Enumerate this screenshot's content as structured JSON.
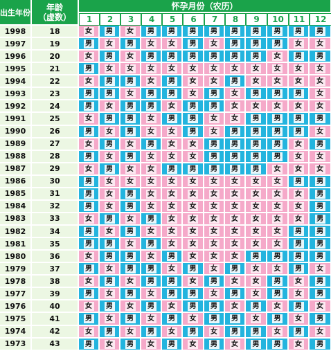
{
  "header": {
    "birth_year_label": "出生年份",
    "age_label": "年龄",
    "age_sub_label": "（虚数）",
    "months_label": "怀孕月份（农历）",
    "months": [
      "1",
      "2",
      "3",
      "4",
      "5",
      "6",
      "7",
      "8",
      "9",
      "10",
      "11",
      "12"
    ]
  },
  "colors": {
    "header_green": "#1aa34a",
    "boy_blue": "#23b4de",
    "girl_pink": "#f5a9c9",
    "label_bg": "#ecf7e3"
  },
  "rows": [
    {
      "year": "1998",
      "age": "18",
      "cells": [
        "女",
        "男",
        "女",
        "男",
        "男",
        "男",
        "男",
        "男",
        "男",
        "男",
        "男",
        "男"
      ]
    },
    {
      "year": "1997",
      "age": "19",
      "cells": [
        "男",
        "女",
        "男",
        "女",
        "女",
        "男",
        "女",
        "男",
        "男",
        "男",
        "女",
        "女"
      ]
    },
    {
      "year": "1996",
      "age": "20",
      "cells": [
        "女",
        "男",
        "女",
        "男",
        "男",
        "男",
        "男",
        "男",
        "男",
        "女",
        "男",
        "男"
      ]
    },
    {
      "year": "1995",
      "age": "21",
      "cells": [
        "男",
        "女",
        "女",
        "女",
        "女",
        "女",
        "女",
        "女",
        "女",
        "女",
        "女",
        "女"
      ]
    },
    {
      "year": "1994",
      "age": "22",
      "cells": [
        "女",
        "男",
        "男",
        "女",
        "男",
        "女",
        "女",
        "男",
        "女",
        "女",
        "女",
        "女"
      ]
    },
    {
      "year": "1993",
      "age": "23",
      "cells": [
        "男",
        "男",
        "女",
        "男",
        "男",
        "女",
        "男",
        "女",
        "男",
        "男",
        "男",
        "女"
      ]
    },
    {
      "year": "1992",
      "age": "24",
      "cells": [
        "男",
        "女",
        "男",
        "男",
        "女",
        "男",
        "男",
        "女",
        "女",
        "女",
        "女",
        "女"
      ]
    },
    {
      "year": "1991",
      "age": "25",
      "cells": [
        "女",
        "男",
        "男",
        "女",
        "男",
        "男",
        "女",
        "女",
        "男",
        "男",
        "男",
        "男"
      ]
    },
    {
      "year": "1990",
      "age": "26",
      "cells": [
        "男",
        "女",
        "男",
        "女",
        "女",
        "男",
        "女",
        "男",
        "男",
        "男",
        "男",
        "女"
      ]
    },
    {
      "year": "1989",
      "age": "27",
      "cells": [
        "女",
        "男",
        "女",
        "男",
        "女",
        "女",
        "男",
        "男",
        "男",
        "男",
        "女",
        "男"
      ]
    },
    {
      "year": "1988",
      "age": "28",
      "cells": [
        "男",
        "女",
        "男",
        "女",
        "女",
        "女",
        "男",
        "男",
        "男",
        "男",
        "女",
        "女"
      ]
    },
    {
      "year": "1987",
      "age": "29",
      "cells": [
        "女",
        "男",
        "女",
        "女",
        "男",
        "男",
        "男",
        "男",
        "男",
        "女",
        "女",
        "女"
      ]
    },
    {
      "year": "1986",
      "age": "30",
      "cells": [
        "男",
        "女",
        "女",
        "女",
        "女",
        "女",
        "女",
        "女",
        "女",
        "女",
        "男",
        "男"
      ]
    },
    {
      "year": "1985",
      "age": "31",
      "cells": [
        "男",
        "女",
        "男",
        "女",
        "女",
        "女",
        "女",
        "女",
        "女",
        "女",
        "女",
        "男"
      ]
    },
    {
      "year": "1984",
      "age": "32",
      "cells": [
        "男",
        "女",
        "男",
        "女",
        "女",
        "女",
        "女",
        "女",
        "女",
        "女",
        "女",
        "男"
      ]
    },
    {
      "year": "1983",
      "age": "33",
      "cells": [
        "女",
        "男",
        "女",
        "男",
        "女",
        "女",
        "女",
        "女",
        "女",
        "女",
        "女",
        "男"
      ]
    },
    {
      "year": "1982",
      "age": "34",
      "cells": [
        "男",
        "女",
        "男",
        "女",
        "女",
        "女",
        "女",
        "女",
        "女",
        "女",
        "男",
        "男"
      ]
    },
    {
      "year": "1981",
      "age": "35",
      "cells": [
        "男",
        "男",
        "女",
        "男",
        "女",
        "女",
        "女",
        "女",
        "女",
        "女",
        "男",
        "男"
      ]
    },
    {
      "year": "1980",
      "age": "36",
      "cells": [
        "女",
        "男",
        "男",
        "女",
        "男",
        "女",
        "女",
        "女",
        "男",
        "男",
        "男",
        "男"
      ]
    },
    {
      "year": "1979",
      "age": "37",
      "cells": [
        "男",
        "女",
        "男",
        "男",
        "女",
        "男",
        "女",
        "男",
        "女",
        "女",
        "男",
        "女"
      ]
    },
    {
      "year": "1978",
      "age": "38",
      "cells": [
        "女",
        "男",
        "女",
        "男",
        "男",
        "女",
        "男",
        "女",
        "女",
        "男",
        "女",
        "男"
      ]
    },
    {
      "year": "1977",
      "age": "39",
      "cells": [
        "男",
        "女",
        "男",
        "女",
        "男",
        "男",
        "女",
        "男",
        "女",
        "男",
        "女",
        "男"
      ]
    },
    {
      "year": "1976",
      "age": "40",
      "cells": [
        "女",
        "男",
        "女",
        "男",
        "女",
        "男",
        "男",
        "女",
        "男",
        "女",
        "男",
        "女"
      ]
    },
    {
      "year": "1975",
      "age": "41",
      "cells": [
        "男",
        "女",
        "男",
        "女",
        "男",
        "女",
        "男",
        "男",
        "女",
        "男",
        "女",
        "男"
      ]
    },
    {
      "year": "1974",
      "age": "42",
      "cells": [
        "女",
        "男",
        "女",
        "男",
        "女",
        "男",
        "女",
        "男",
        "男",
        "女",
        "男",
        "女"
      ]
    },
    {
      "year": "1973",
      "age": "43",
      "cells": [
        "男",
        "女",
        "男",
        "女",
        "男",
        "女",
        "男",
        "女",
        "男",
        "男",
        "女",
        "男"
      ]
    }
  ]
}
